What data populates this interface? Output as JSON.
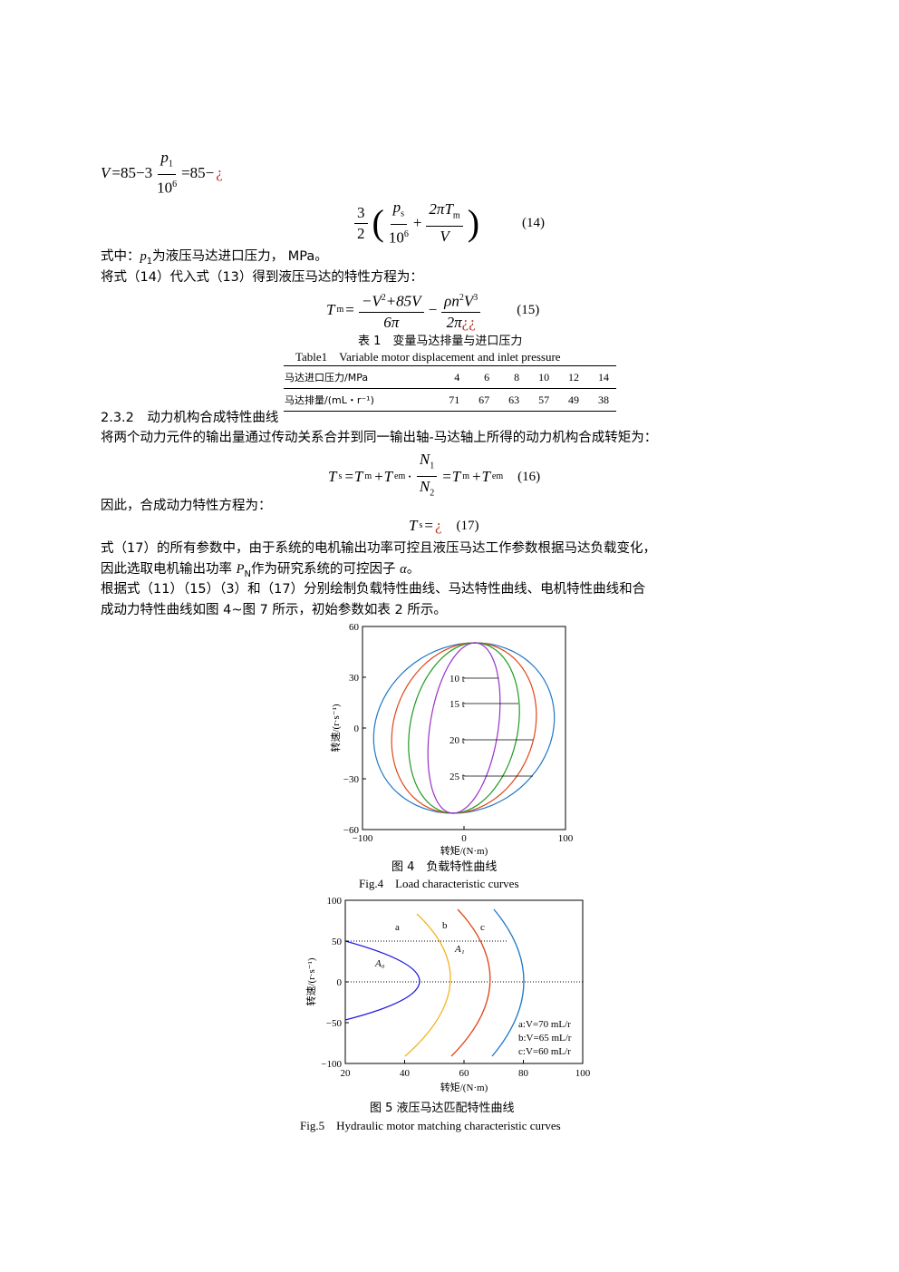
{
  "eq_v": {
    "lhs": "V",
    "op": "=85−3",
    "num": "p",
    "num_sub": "1",
    "den": "10",
    "den_sup": "6",
    "rhs": "=85−",
    "odd": "¿"
  },
  "eq14": {
    "c_num": "3",
    "c_den": "2",
    "lp": "(",
    "f1_num": "p",
    "f1_sub": "s",
    "f1_den": "10",
    "f1_sup": "6",
    "plus": "+",
    "f2_num": "2πT",
    "f2_sub": "m",
    "f2_den": "V",
    "rp": ")",
    "number": "(14)"
  },
  "note1": {
    "pre": "式中：",
    "var": "p",
    "sub": "1",
    "post": "为液压马达进口压力， MPa。"
  },
  "line2": "将式（14）代入式（13）得到液压马达的特性方程为：",
  "eq15": {
    "lhs": "T",
    "lhs_sub": "m",
    "eq": "=",
    "f1_num": "−V",
    "f1_sup": "2",
    "f1_num2": "+85V",
    "f1_den": "6π",
    "minus": "−",
    "f2_num": "ρn",
    "f2_sup1": "2",
    "f2_num2": "V",
    "f2_sup2": "3",
    "f2_den": "2π",
    "f2_odd": "¿¿",
    "number": "(15)"
  },
  "table": {
    "caption_cn": "表 1　变量马达排量与进口压力",
    "caption_en": "Table1　Variable motor displacement and inlet pressure",
    "rows": [
      [
        "马达进口压力/MPa",
        "4",
        "6",
        "8",
        "10",
        "12",
        "14"
      ],
      [
        "马达排量/(mL・r⁻¹)",
        "71",
        "67",
        "63",
        "57",
        "49",
        "38"
      ]
    ]
  },
  "section": "2.3.2　动力机构合成特性曲线",
  "line3": "将两个动力元件的输出量通过传动关系合并到同一输出轴-马达轴上所得的动力机构合成转矩为：",
  "eq16": {
    "lhs": "T",
    "lhs_sub": "s",
    "p1": "=T",
    "p1_sub": "m",
    "p2": "+T",
    "p2_sub": "em",
    "dot": " · ",
    "num": "N",
    "num_sub": "1",
    "den": "N",
    "den_sub": "2",
    "p3": "=T",
    "p3_sub": "m",
    "p4": "+T",
    "p4_sub": "em",
    "number": "(16)"
  },
  "line4": "因此，合成动力特性方程为：",
  "eq17": {
    "lhs": "T",
    "lhs_sub": "s",
    "eq": "=",
    "odd": "¿",
    "number": "(17)"
  },
  "para": {
    "l1": "式（17）的所有参数中，由于系统的电机输出功率可控且液压马达工作参数根据马达负载变化，",
    "l2_pre": "因此选取电机输出功率 ",
    "l2_var": "P",
    "l2_sub": "N",
    "l2_mid": "作为研究系统的可控因子 ",
    "l2_alpha": "α",
    "l2_post": "。",
    "l3": "根据式（11）（15）（3）和（17）分别绘制负载特性曲线、马达特性曲线、电机特性曲线和合",
    "l4": "成动力特性曲线如图 4~图 7 所示，初始参数如表 2 所示。"
  },
  "fig4": {
    "yticks": [
      "60",
      "30",
      "0",
      "−30",
      "−60"
    ],
    "xticks": [
      "−100",
      "0",
      "100"
    ],
    "ylabel": "转速/(r·s⁻¹)",
    "xlabel": "转矩/(N·m)",
    "labels": [
      "10 t",
      "15 t",
      "20 t",
      "25 t"
    ],
    "caption_cn": "图 4　负载特性曲线",
    "caption_en": "Fig.4　Load characteristic curves"
  },
  "fig5": {
    "yticks": [
      "100",
      "50",
      "0",
      "−50",
      "−100"
    ],
    "xticks": [
      "20",
      "40",
      "60",
      "80",
      "100"
    ],
    "ylabel": "转速/(r·s⁻¹)",
    "xlabel": "转矩/(N·m)",
    "curve_labels": [
      "a",
      "b",
      "c"
    ],
    "region_labels": [
      "A₁",
      "A₀"
    ],
    "legend": [
      "a:V=70 mL/r",
      "b:V=65 mL/r",
      "c:V=60 mL/r"
    ],
    "caption_cn": "图 5 液压马达匹配特性曲线",
    "caption_en": "Fig.5　Hydraulic motor matching characteristic curves"
  }
}
